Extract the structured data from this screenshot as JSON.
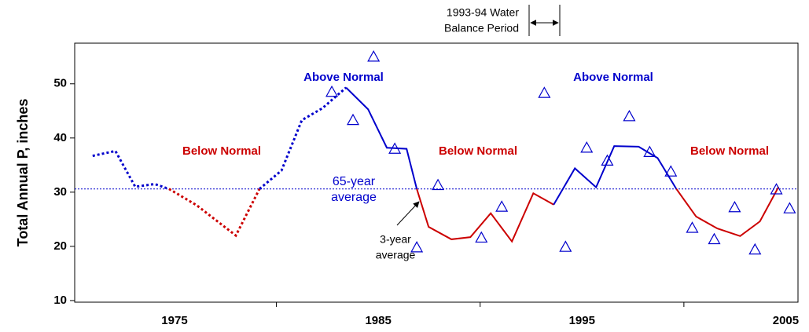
{
  "chart_data": {
    "type": "line",
    "y_label": "Total Annual P, inches",
    "xlim": [
      1970.1,
      2005.6
    ],
    "ylim": [
      9.7,
      57.5
    ],
    "xticks": [
      1975,
      1985,
      1995,
      2005
    ],
    "yticks": [
      10,
      20,
      30,
      40,
      50
    ],
    "annual": {
      "color": "#0000cc",
      "x": [
        1982.72,
        1983.76,
        1984.77,
        1985.81,
        1986.89,
        1987.93,
        1990.06,
        1991.06,
        1993.15,
        1994.19,
        1995.23,
        1996.24,
        1997.32,
        1998.32,
        1999.36,
        2000.41,
        2001.49,
        2002.49,
        2003.49,
        2004.54,
        2005.19
      ],
      "values": [
        48.5,
        43.3,
        55,
        38,
        19.8,
        31.3,
        21.6,
        27.3,
        48.3,
        19.9,
        38.2,
        35.8,
        44,
        37.4,
        33.8,
        23.4,
        21.3,
        27.2,
        19.4,
        30.5,
        27
      ]
    },
    "lines": [
      {
        "color": "#0000cc",
        "dashed": true,
        "x": [
          1970.98,
          1972.1,
          1973.07,
          1974.03,
          1974.73
        ],
        "values": [
          36.7,
          37.6,
          31.0,
          31.5,
          30.6
        ]
      },
      {
        "color": "#cc0000",
        "dashed": true,
        "x": [
          1974.73,
          1976.08,
          1978.01,
          1979.17
        ],
        "values": [
          30.6,
          27.6,
          22.0,
          30.6
        ]
      },
      {
        "color": "#0000cc",
        "dashed": true,
        "x": [
          1979.17,
          1980.25,
          1981.25,
          1982.26,
          1983.42
        ],
        "values": [
          30.6,
          34.0,
          43.3,
          45.5,
          49.3
        ]
      },
      {
        "color": "#0000cc",
        "dashed": false,
        "x": [
          1983.42,
          1984.5,
          1985.42,
          1986.39,
          1986.89
        ],
        "values": [
          49.3,
          45.3,
          38.2,
          38.0,
          30.6
        ]
      },
      {
        "color": "#cc0000",
        "dashed": false,
        "x": [
          1986.89,
          1987.47,
          1988.59,
          1989.52,
          1990.52,
          1991.56,
          1992.61,
          1993.61
        ],
        "values": [
          30.6,
          23.6,
          21.3,
          21.7,
          26.1,
          20.9,
          29.8,
          27.7
        ]
      },
      {
        "color": "#0000cc",
        "dashed": false,
        "x": [
          1993.61,
          1994.65,
          1995.69,
          1996.58,
          1997.78,
          1998.71,
          1999.63
        ],
        "values": [
          27.7,
          34.4,
          30.9,
          38.5,
          38.4,
          36.3,
          30.6
        ]
      },
      {
        "color": "#cc0000",
        "dashed": false,
        "x": [
          1999.63,
          2000.6,
          2001.64,
          2002.76,
          2003.73,
          2004.65
        ],
        "values": [
          30.6,
          25.5,
          23.3,
          21.9,
          24.6,
          31.0
        ]
      }
    ],
    "average": {
      "value": 30.6,
      "color": "#0000cc"
    },
    "annotations": [
      {
        "text": "Below Normal",
        "color": "#cc0000"
      },
      {
        "text": "Above Normal",
        "color": "#0000cc"
      },
      {
        "text": "Below Normal",
        "color": "#cc0000"
      },
      {
        "text": "Above Normal",
        "color": "#0000cc"
      },
      {
        "text": "Below Normal",
        "color": "#cc0000"
      },
      {
        "text": "65-year",
        "color": "#0000cc"
      },
      {
        "text": "average",
        "color": "#0000cc"
      },
      {
        "text": "3-year",
        "color": "#000000"
      },
      {
        "text": "average",
        "color": "#000000"
      },
      {
        "text": "1993-94 Water",
        "color": "#000000"
      },
      {
        "text": "Balance Period",
        "color": "#000000"
      }
    ]
  }
}
